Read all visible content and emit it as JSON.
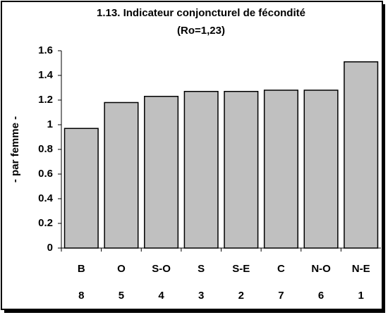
{
  "chart_data": {
    "type": "bar",
    "title": "1.13. Indicateur conjoncturel de fécondité",
    "subtitle": "(Ro=1,23)",
    "y_label": "- par femme -",
    "categories": [
      "B",
      "O",
      "S-O",
      "S",
      "S-E",
      "C",
      "N-O",
      "N-E"
    ],
    "category_ranks": [
      "8",
      "5",
      "4",
      "3",
      "2",
      "7",
      "6",
      "1"
    ],
    "values": [
      0.97,
      1.18,
      1.23,
      1.27,
      1.27,
      1.28,
      1.28,
      1.51
    ],
    "color": "#c0c0c0",
    "ylim": [
      0,
      1.6
    ],
    "yticks": [
      0,
      0.2,
      0.4,
      0.6,
      0.8,
      1,
      1.2,
      1.4,
      1.6
    ],
    "grid": false
  }
}
